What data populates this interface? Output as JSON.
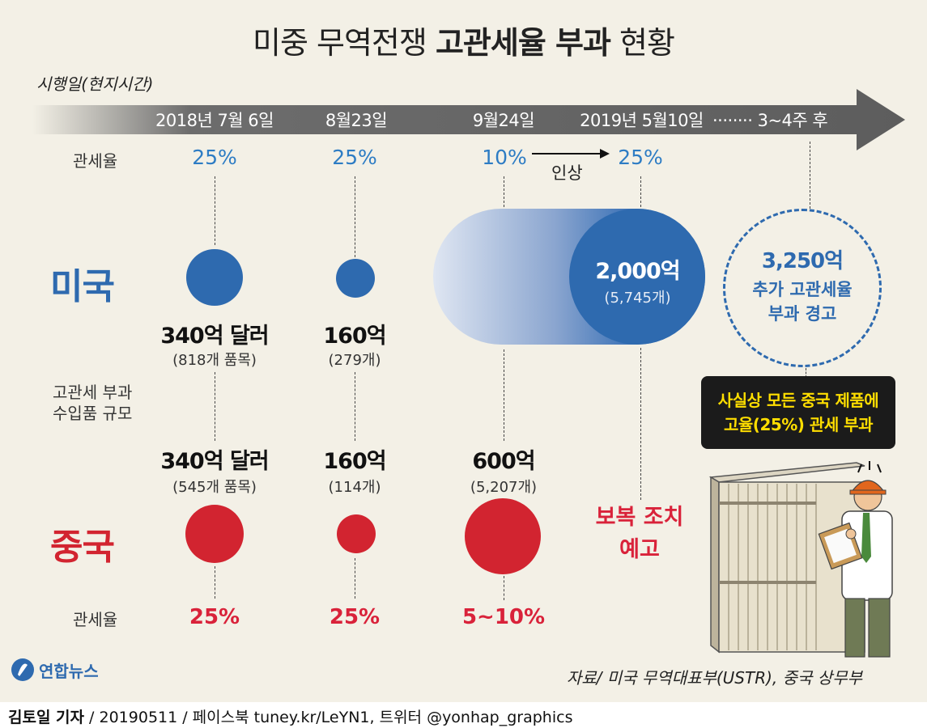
{
  "title": {
    "normal": "미중 무역전쟁",
    "bold": "고관세율 부과",
    "tail": "현황"
  },
  "axis_label": "시행일(현지시간)",
  "timeline": {
    "dates": [
      "2018년 7월 6일",
      "8월23일",
      "9월24일",
      "2019년 5월10일",
      "········ 3~4주 후"
    ]
  },
  "labels": {
    "tariff_rate": "관세율",
    "import_scale_1": "고관세 부과",
    "import_scale_2": "수입품 규모",
    "raise": "인상"
  },
  "us": {
    "name": "미국",
    "rates": [
      "25%",
      "25%",
      "10%",
      "25%"
    ],
    "amounts": [
      {
        "value": "340억 달러",
        "items": "(818개 품목)"
      },
      {
        "value": "160억",
        "items": "(279개)"
      },
      {
        "value": "2,000억",
        "items": "(5,745개)"
      }
    ]
  },
  "warning": {
    "line1": "3,250억",
    "line2": "추가 고관세율",
    "line3": "부과 경고"
  },
  "callout": {
    "line1": "사실상 모든 중국 제품에",
    "line2": "고율(25%) 관세 부과"
  },
  "china": {
    "name": "중국",
    "rates": [
      "25%",
      "25%",
      "5~10%"
    ],
    "amounts": [
      {
        "value": "340억 달러",
        "items": "(545개 품목)"
      },
      {
        "value": "160억",
        "items": "(114개)"
      },
      {
        "value": "600억",
        "items": "(5,207개)"
      }
    ],
    "retaliation_1": "보복 조치",
    "retaliation_2": "예고"
  },
  "source": "자료/ 미국 무역대표부(USTR), 중국 상무부",
  "logo": "연합뉴스",
  "footer": {
    "reporter": "김토일 기자",
    "rest": " / 20190511 / 페이스북 tuney.kr/LeYN1, 트위터 @yonhap_graphics"
  },
  "colors": {
    "us_blue": "#2e6aaf",
    "china_red": "#d22430",
    "rate_blue": "#2d7cc4",
    "callout_text": "#ffde00"
  }
}
